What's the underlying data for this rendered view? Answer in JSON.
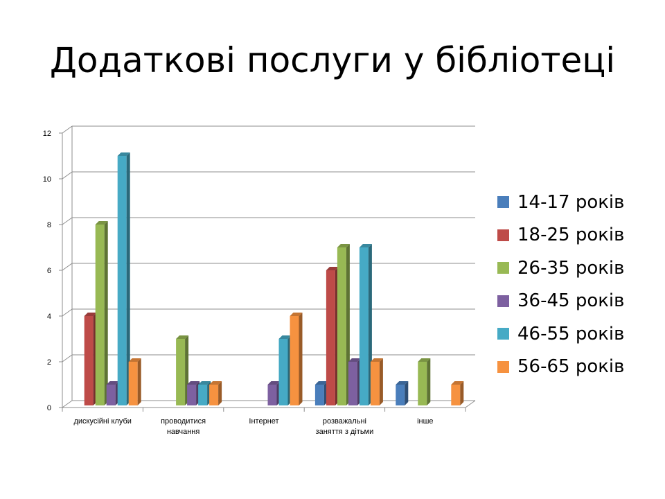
{
  "title": "Додаткові послуги у бібліотеці",
  "chart_data": {
    "type": "bar",
    "title": "Додаткові послуги у бібліотеці",
    "categories": [
      [
        "дискусійні клуби"
      ],
      [
        "проводитися",
        "навчання"
      ],
      [
        "Інтернет"
      ],
      [
        "розважальні",
        "заняття з дітьми"
      ],
      [
        "інше"
      ]
    ],
    "series": [
      {
        "name": "14-17 років",
        "color": "#4a7ebb",
        "values": [
          0,
          0,
          0,
          1,
          1
        ]
      },
      {
        "name": "18-25 років",
        "color": "#be4b48",
        "values": [
          4,
          0,
          0,
          6,
          0
        ]
      },
      {
        "name": "26-35 років",
        "color": "#98b954",
        "values": [
          8,
          3,
          0,
          7,
          2
        ]
      },
      {
        "name": "36-45 років",
        "color": "#7d60a0",
        "values": [
          1,
          1,
          1,
          2,
          0
        ]
      },
      {
        "name": "46-55 років",
        "color": "#46aac5",
        "values": [
          11,
          1,
          3,
          7,
          0
        ]
      },
      {
        "name": "56-65 років",
        "color": "#f69240",
        "values": [
          2,
          1,
          4,
          2,
          1
        ]
      }
    ],
    "y_ticks": [
      "0",
      "2",
      "4",
      "6",
      "8",
      "10",
      "12"
    ],
    "ylim": [
      0,
      12
    ],
    "grid": true,
    "legend_position": "right"
  }
}
